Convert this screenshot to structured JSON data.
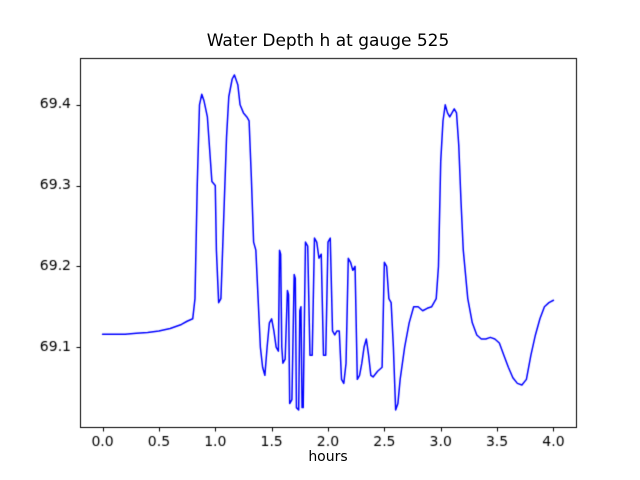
{
  "chart_data": {
    "type": "line",
    "title": "Water Depth h at gauge 525",
    "xlabel": "hours",
    "ylabel": "",
    "grid": false,
    "legend": null,
    "line_color": "#0000ff",
    "axis_color": "#000000",
    "xlim": [
      -0.2,
      4.2
    ],
    "ylim": [
      69.001,
      69.458
    ],
    "xticks": [
      0.0,
      0.5,
      1.0,
      1.5,
      2.0,
      2.5,
      3.0,
      3.5,
      4.0
    ],
    "xtick_labels": [
      "0.0",
      "0.5",
      "1.0",
      "1.5",
      "2.0",
      "2.5",
      "3.0",
      "3.5",
      "4.0"
    ],
    "yticks": [
      69.1,
      69.2,
      69.3,
      69.4
    ],
    "ytick_labels": [
      "69.1",
      "69.2",
      "69.3",
      "69.4"
    ],
    "series": [
      {
        "name": "h",
        "x": [
          0.0,
          0.1,
          0.2,
          0.3,
          0.4,
          0.5,
          0.6,
          0.7,
          0.75,
          0.8,
          0.82,
          0.84,
          0.86,
          0.88,
          0.9,
          0.93,
          0.95,
          0.97,
          1.0,
          1.01,
          1.03,
          1.05,
          1.08,
          1.1,
          1.12,
          1.15,
          1.17,
          1.2,
          1.22,
          1.25,
          1.28,
          1.3,
          1.32,
          1.34,
          1.36,
          1.38,
          1.4,
          1.42,
          1.44,
          1.46,
          1.48,
          1.5,
          1.52,
          1.54,
          1.56,
          1.57,
          1.58,
          1.59,
          1.6,
          1.62,
          1.64,
          1.65,
          1.66,
          1.68,
          1.7,
          1.71,
          1.72,
          1.74,
          1.75,
          1.76,
          1.77,
          1.78,
          1.8,
          1.82,
          1.84,
          1.86,
          1.88,
          1.9,
          1.92,
          1.94,
          1.96,
          1.98,
          2.0,
          2.02,
          2.04,
          2.06,
          2.08,
          2.1,
          2.12,
          2.14,
          2.16,
          2.18,
          2.2,
          2.22,
          2.24,
          2.26,
          2.28,
          2.3,
          2.32,
          2.34,
          2.36,
          2.38,
          2.4,
          2.44,
          2.48,
          2.5,
          2.52,
          2.54,
          2.56,
          2.58,
          2.6,
          2.62,
          2.64,
          2.68,
          2.72,
          2.76,
          2.8,
          2.84,
          2.88,
          2.92,
          2.96,
          2.98,
          3.0,
          3.02,
          3.04,
          3.06,
          3.08,
          3.1,
          3.12,
          3.14,
          3.16,
          3.18,
          3.2,
          3.24,
          3.28,
          3.32,
          3.36,
          3.4,
          3.44,
          3.48,
          3.52,
          3.56,
          3.6,
          3.64,
          3.68,
          3.72,
          3.76,
          3.8,
          3.84,
          3.88,
          3.92,
          3.96,
          4.0
        ],
        "y": [
          69.116,
          69.116,
          69.116,
          69.117,
          69.118,
          69.12,
          69.123,
          69.128,
          69.132,
          69.135,
          69.16,
          69.3,
          69.4,
          69.413,
          69.405,
          69.385,
          69.345,
          69.305,
          69.3,
          69.22,
          69.155,
          69.16,
          69.28,
          69.36,
          69.41,
          69.432,
          69.437,
          69.425,
          69.4,
          69.39,
          69.385,
          69.38,
          69.31,
          69.23,
          69.22,
          69.16,
          69.1,
          69.075,
          69.065,
          69.1,
          69.13,
          69.135,
          69.12,
          69.1,
          69.095,
          69.22,
          69.215,
          69.1,
          69.08,
          69.085,
          69.17,
          69.165,
          69.03,
          69.035,
          69.19,
          69.185,
          69.025,
          69.022,
          69.145,
          69.15,
          69.025,
          69.025,
          69.23,
          69.225,
          69.09,
          69.09,
          69.235,
          69.23,
          69.21,
          69.215,
          69.09,
          69.09,
          69.23,
          69.235,
          69.12,
          69.115,
          69.12,
          69.12,
          69.06,
          69.055,
          69.08,
          69.21,
          69.205,
          69.195,
          69.2,
          69.06,
          69.065,
          69.08,
          69.1,
          69.11,
          69.09,
          69.065,
          69.063,
          69.07,
          69.075,
          69.205,
          69.2,
          69.16,
          69.155,
          69.1,
          69.022,
          69.03,
          69.06,
          69.1,
          69.13,
          69.15,
          69.15,
          69.145,
          69.148,
          69.15,
          69.16,
          69.2,
          69.33,
          69.38,
          69.4,
          69.39,
          69.385,
          69.39,
          69.395,
          69.39,
          69.35,
          69.28,
          69.22,
          69.16,
          69.13,
          69.115,
          69.11,
          69.11,
          69.112,
          69.11,
          69.105,
          69.09,
          69.075,
          69.062,
          69.055,
          69.053,
          69.06,
          69.09,
          69.115,
          69.135,
          69.15,
          69.155,
          69.158
        ]
      }
    ]
  }
}
